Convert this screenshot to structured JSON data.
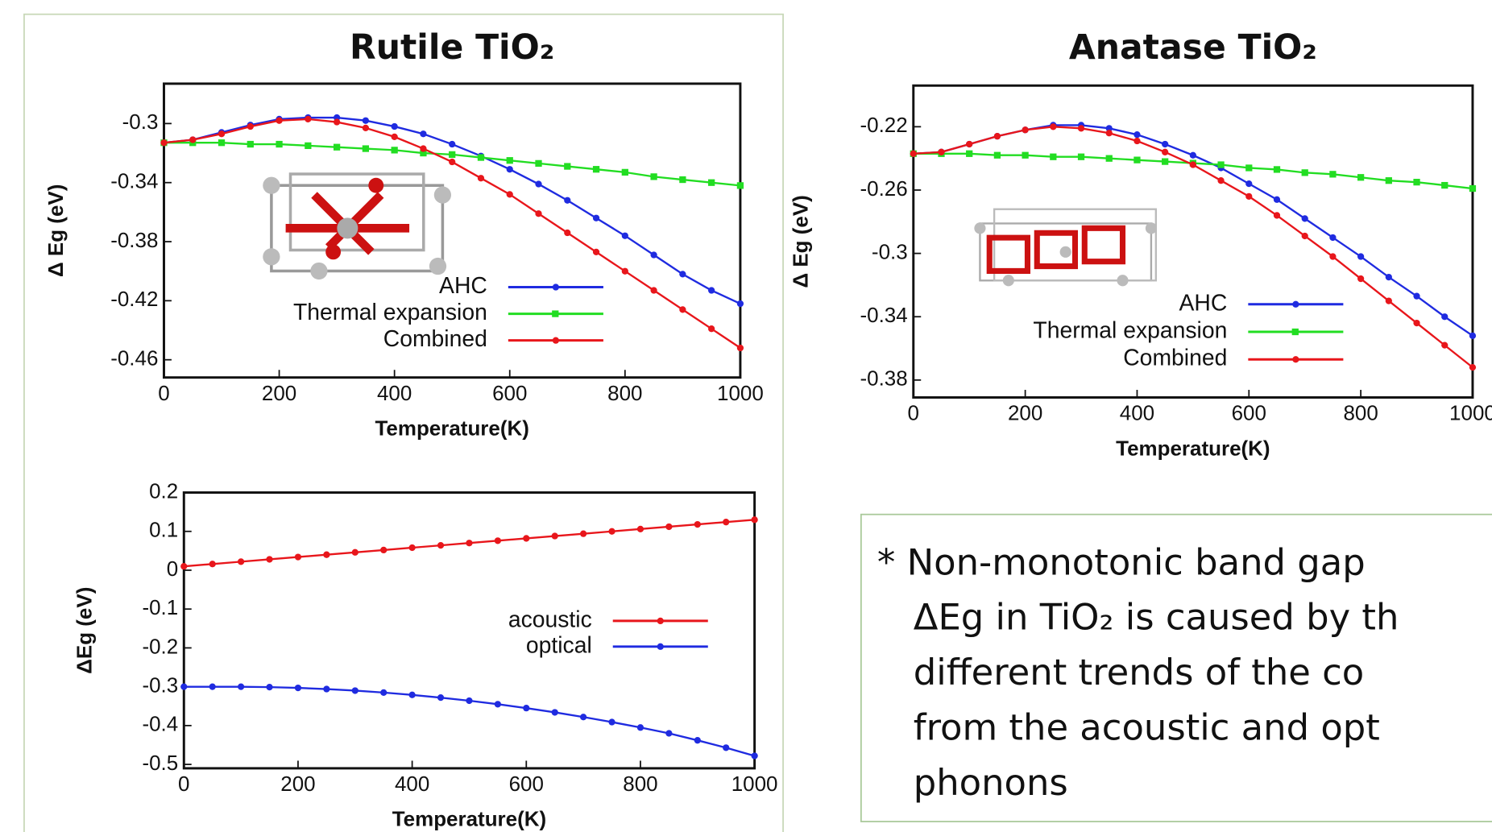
{
  "chart_data": [
    {
      "type": "line",
      "title": "Rutile TiO₂",
      "x_label": "Temperature(K)",
      "y_label": "Δ Eg (eV)",
      "x": [
        0,
        50,
        100,
        150,
        200,
        250,
        300,
        350,
        400,
        450,
        500,
        550,
        600,
        650,
        700,
        750,
        800,
        850,
        900,
        950,
        1000
      ],
      "series": [
        {
          "name": "AHC",
          "color": "#1f2be0",
          "marker": "circle",
          "values": [
            -0.313,
            -0.311,
            -0.306,
            -0.301,
            -0.297,
            -0.296,
            -0.296,
            -0.298,
            -0.302,
            -0.307,
            -0.314,
            -0.322,
            -0.331,
            -0.341,
            -0.352,
            -0.364,
            -0.376,
            -0.389,
            -0.402,
            -0.413,
            -0.422
          ]
        },
        {
          "name": "Thermal expansion",
          "color": "#22dd22",
          "marker": "square",
          "values": [
            -0.313,
            -0.313,
            -0.313,
            -0.314,
            -0.314,
            -0.315,
            -0.316,
            -0.317,
            -0.318,
            -0.32,
            -0.321,
            -0.323,
            -0.325,
            -0.327,
            -0.329,
            -0.331,
            -0.333,
            -0.336,
            -0.338,
            -0.34,
            -0.342
          ]
        },
        {
          "name": "Combined",
          "color": "#e8161b",
          "marker": "circle",
          "values": [
            -0.313,
            -0.311,
            -0.307,
            -0.302,
            -0.298,
            -0.297,
            -0.299,
            -0.303,
            -0.309,
            -0.317,
            -0.326,
            -0.337,
            -0.348,
            -0.361,
            -0.374,
            -0.387,
            -0.4,
            -0.413,
            -0.426,
            -0.439,
            -0.452
          ]
        }
      ],
      "xlim": [
        0,
        1000
      ],
      "ylim": [
        -0.472,
        -0.273
      ],
      "xticks": [
        0,
        200,
        400,
        600,
        800,
        1000
      ],
      "yticks": [
        -0.3,
        -0.34,
        -0.38,
        -0.42,
        -0.46
      ],
      "legend": "lower right"
    },
    {
      "type": "line",
      "title": "Anatase TiO₂",
      "x_label": "Temperature(K)",
      "y_label": "Δ Eg (eV)",
      "x": [
        0,
        50,
        100,
        150,
        200,
        250,
        300,
        350,
        400,
        450,
        500,
        550,
        600,
        650,
        700,
        750,
        800,
        850,
        900,
        950,
        1000
      ],
      "series": [
        {
          "name": "AHC",
          "color": "#1f2be0",
          "marker": "circle",
          "values": [
            -0.237,
            -0.236,
            -0.231,
            -0.226,
            -0.222,
            -0.219,
            -0.219,
            -0.221,
            -0.225,
            -0.231,
            -0.238,
            -0.246,
            -0.256,
            -0.266,
            -0.278,
            -0.29,
            -0.302,
            -0.315,
            -0.327,
            -0.34,
            -0.352
          ]
        },
        {
          "name": "Thermal expansion",
          "color": "#22dd22",
          "marker": "square",
          "values": [
            -0.237,
            -0.237,
            -0.237,
            -0.238,
            -0.238,
            -0.239,
            -0.239,
            -0.24,
            -0.241,
            -0.242,
            -0.243,
            -0.244,
            -0.246,
            -0.247,
            -0.249,
            -0.25,
            -0.252,
            -0.254,
            -0.255,
            -0.257,
            -0.259
          ]
        },
        {
          "name": "Combined",
          "color": "#e8161b",
          "marker": "circle",
          "values": [
            -0.237,
            -0.236,
            -0.231,
            -0.226,
            -0.222,
            -0.22,
            -0.221,
            -0.224,
            -0.229,
            -0.236,
            -0.244,
            -0.254,
            -0.264,
            -0.276,
            -0.289,
            -0.302,
            -0.316,
            -0.33,
            -0.344,
            -0.358,
            -0.372
          ]
        }
      ],
      "xlim": [
        0,
        1000
      ],
      "ylim": [
        -0.391,
        -0.194
      ],
      "xticks": [
        0,
        200,
        400,
        600,
        800,
        1000
      ],
      "yticks": [
        -0.22,
        -0.26,
        -0.3,
        -0.34,
        -0.38
      ],
      "legend": "lower right"
    },
    {
      "type": "line",
      "x_label": "Temperature(K)",
      "y_label": "ΔEg (eV)",
      "x": [
        0,
        50,
        100,
        150,
        200,
        250,
        300,
        350,
        400,
        450,
        500,
        550,
        600,
        650,
        700,
        750,
        800,
        850,
        900,
        950,
        1000
      ],
      "series": [
        {
          "name": "acoustic",
          "color": "#e8161b",
          "marker": "circle",
          "values": [
            0.01,
            0.016,
            0.022,
            0.028,
            0.034,
            0.04,
            0.046,
            0.052,
            0.058,
            0.064,
            0.07,
            0.076,
            0.082,
            0.088,
            0.094,
            0.1,
            0.106,
            0.112,
            0.118,
            0.124,
            0.13
          ]
        },
        {
          "name": "optical",
          "color": "#1f2be0",
          "marker": "circle",
          "values": [
            -0.3,
            -0.3,
            -0.3,
            -0.301,
            -0.303,
            -0.306,
            -0.31,
            -0.315,
            -0.321,
            -0.328,
            -0.336,
            -0.345,
            -0.355,
            -0.366,
            -0.378,
            -0.391,
            -0.405,
            -0.42,
            -0.438,
            -0.457,
            -0.478
          ]
        }
      ],
      "xlim": [
        0,
        1000
      ],
      "ylim": [
        -0.51,
        0.2
      ],
      "xticks": [
        0,
        200,
        400,
        600,
        800,
        1000
      ],
      "yticks": [
        0.2,
        0.1,
        0,
        -0.1,
        -0.2,
        -0.3,
        -0.4,
        -0.5
      ],
      "legend": "center right"
    }
  ],
  "note": {
    "lines": [
      "* Non-monotonic band gap",
      "ΔEg in TiO₂ is caused by th",
      "different trends of the co",
      "from the acoustic and opt",
      "phonons"
    ]
  }
}
